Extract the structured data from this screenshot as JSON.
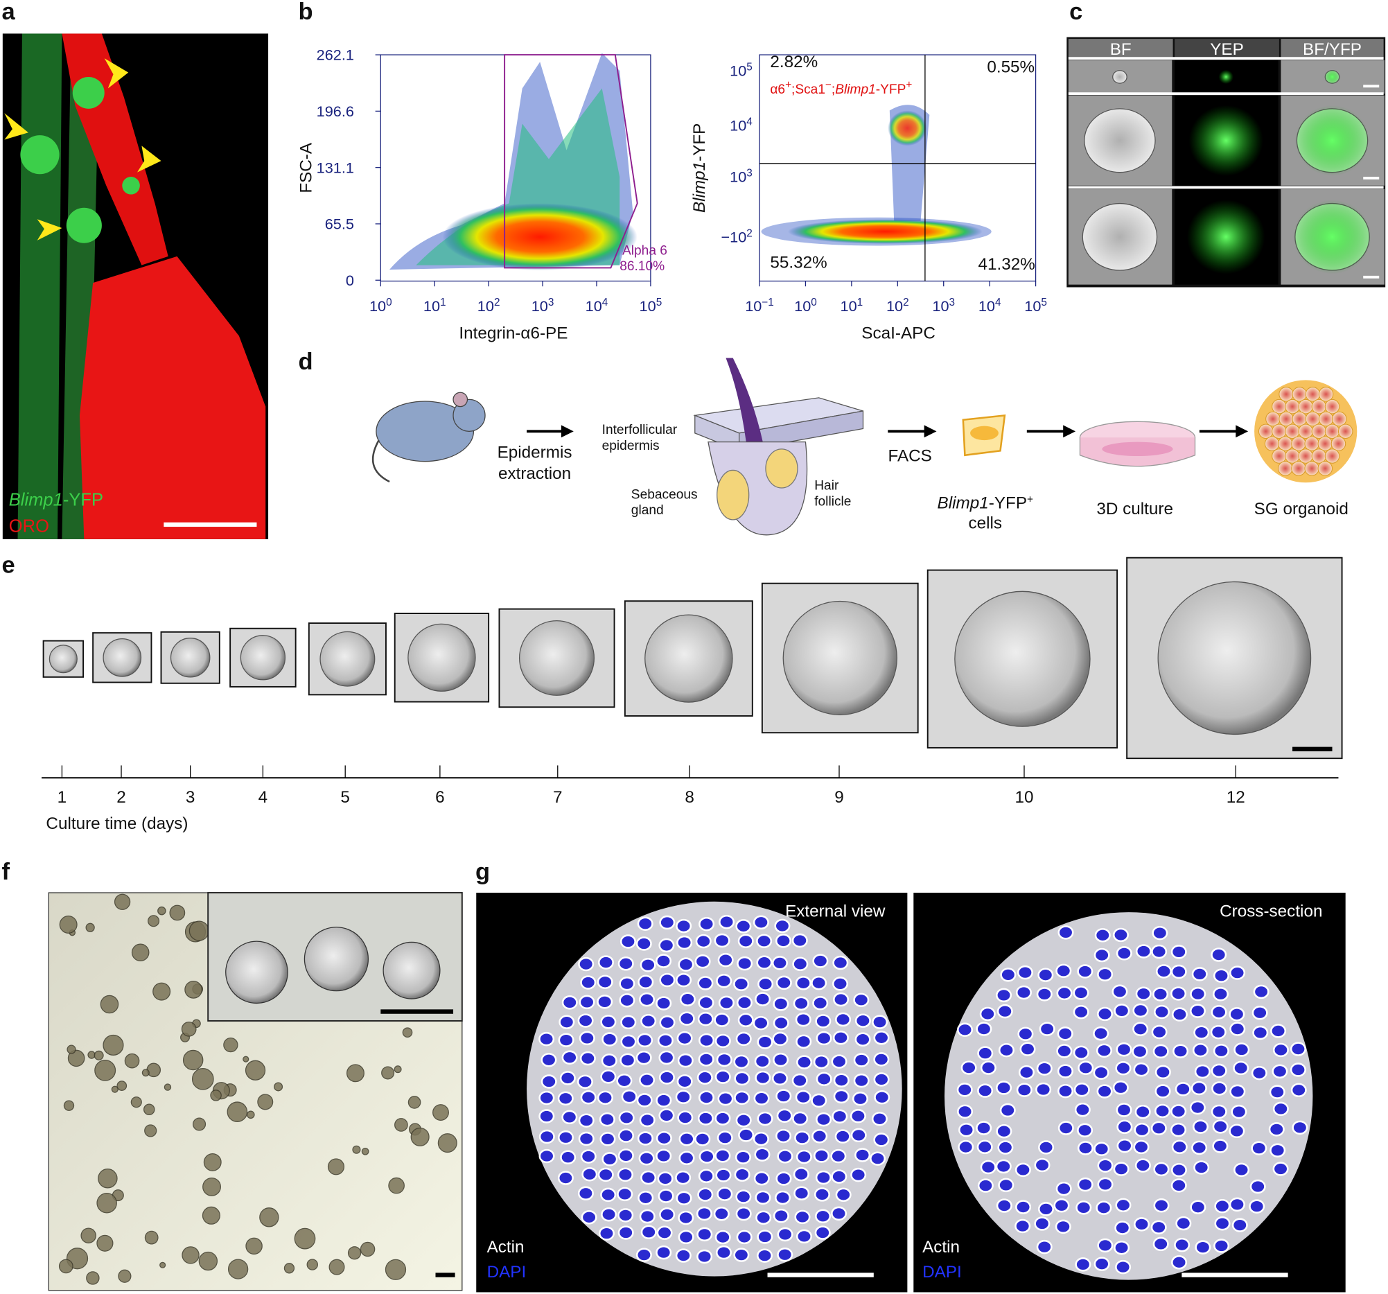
{
  "a": {
    "label": "a",
    "marker_gene": "Blimp1",
    "marker_suffix": "-YFP",
    "stain": "ORO"
  },
  "b": {
    "label": "b",
    "plot1": {
      "y_label": "FSC-A",
      "x_label": "Integrin-α6-PE",
      "yticks": [
        "262.1",
        "196.6",
        "131.1",
        "65.5",
        "0"
      ],
      "xticks": [
        {
          "base": "10",
          "exp": "0"
        },
        {
          "base": "10",
          "exp": "1"
        },
        {
          "base": "10",
          "exp": "2"
        },
        {
          "base": "10",
          "exp": "3"
        },
        {
          "base": "10",
          "exp": "4"
        },
        {
          "base": "10",
          "exp": "5"
        }
      ],
      "gate_name": "Alpha 6",
      "gate_pct": "86.10%"
    },
    "plot2": {
      "y_label_gene": "Blimp1",
      "y_label_suffix": "-YFP",
      "x_label": "ScaI-APC",
      "yticks": [
        {
          "base": "10",
          "exp": "5"
        },
        {
          "base": "10",
          "exp": "4"
        },
        {
          "base": "10",
          "exp": "3"
        },
        {
          "base": "−10",
          "exp": "2"
        }
      ],
      "xticks": [
        {
          "base": "10",
          "exp": "−1"
        },
        {
          "base": "10",
          "exp": "0"
        },
        {
          "base": "10",
          "exp": "1"
        },
        {
          "base": "10",
          "exp": "2"
        },
        {
          "base": "10",
          "exp": "3"
        },
        {
          "base": "10",
          "exp": "4"
        },
        {
          "base": "10",
          "exp": "5"
        }
      ],
      "quadrants": [
        "2.82%",
        "0.55%",
        "55.32%",
        "41.32%"
      ],
      "gate_label": [
        "α6",
        "+",
        ";Sca1",
        "−",
        ";",
        "Blimp1",
        "-YFP",
        "+"
      ]
    }
  },
  "c": {
    "label": "c",
    "columns": [
      "BF",
      "YEP",
      "BF/YFP"
    ]
  },
  "d": {
    "label": "d",
    "extraction": [
      "Epidermis",
      "extraction"
    ],
    "epidermis": [
      "Interfollicular",
      "epidermis"
    ],
    "gland": [
      "Sebaceous",
      "gland"
    ],
    "follicle": [
      "Hair",
      "follicle"
    ],
    "facs": "FACS",
    "cells_gene": "Blimp1",
    "cells_suffix": "-YFP",
    "cells_sup": "+",
    "cells_word": "cells",
    "culture": "3D culture",
    "organoid": "SG organoid"
  },
  "e": {
    "label": "e",
    "days": [
      "1",
      "2",
      "3",
      "4",
      "5",
      "6",
      "7",
      "8",
      "9",
      "10",
      "12"
    ],
    "axis_label": "Culture time (days)"
  },
  "f": {
    "label": "f"
  },
  "g": {
    "label": "g",
    "views": [
      {
        "title": "External view",
        "stain1": "Actin",
        "stain2": "DAPI"
      },
      {
        "title": "Cross-section",
        "stain1": "Actin",
        "stain2": "DAPI"
      }
    ]
  }
}
